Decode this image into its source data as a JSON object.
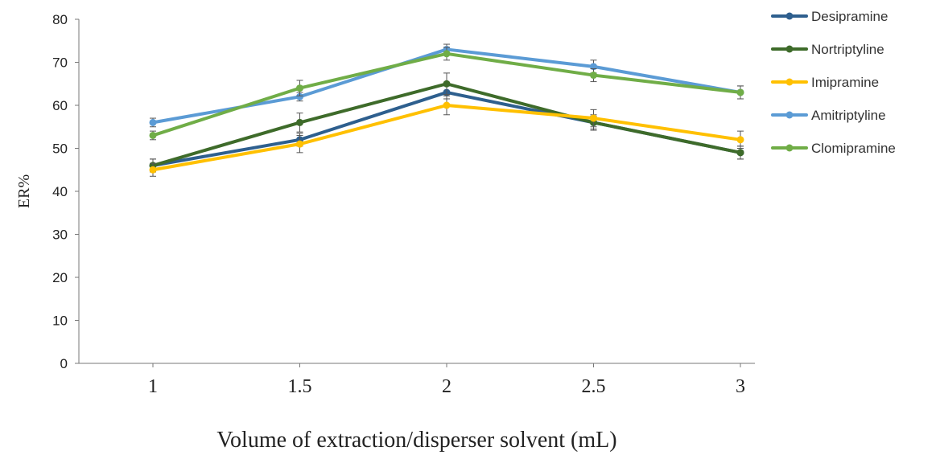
{
  "chart_data": {
    "type": "line",
    "title": "",
    "xlabel": "Volume of extraction/disperser solvent (mL)",
    "ylabel": "ER%",
    "x": [
      1,
      1.5,
      2,
      2.5,
      3
    ],
    "x_tick_labels": [
      "1",
      "1.5",
      "2",
      "2.5",
      "3"
    ],
    "ylim": [
      0,
      80
    ],
    "y_ticks": [
      0,
      10,
      20,
      30,
      40,
      50,
      60,
      70,
      80
    ],
    "grid": false,
    "legend": "right",
    "error_bars": true,
    "series": [
      {
        "name": "Desipramine",
        "color": "#2E5F8E",
        "values": [
          46,
          52,
          63,
          56,
          49
        ],
        "errors": [
          1.5,
          1.5,
          1.5,
          1.5,
          1.5
        ]
      },
      {
        "name": "Nortriptyline",
        "color": "#3E6B2A",
        "values": [
          46,
          56,
          65,
          56,
          49
        ],
        "errors": [
          1.5,
          2.2,
          2.5,
          1.8,
          1.5
        ]
      },
      {
        "name": "Imipramine",
        "color": "#FFC000",
        "values": [
          45,
          51,
          60,
          57,
          52
        ],
        "errors": [
          1.5,
          2.0,
          2.2,
          2.0,
          2.0
        ]
      },
      {
        "name": "Amitriptyline",
        "color": "#5B9BD5",
        "values": [
          56,
          62,
          73,
          69,
          63
        ],
        "errors": [
          1.0,
          1.0,
          1.2,
          1.5,
          1.5
        ]
      },
      {
        "name": "Clomipramine",
        "color": "#70AD47",
        "values": [
          53,
          64,
          72,
          67,
          63
        ],
        "errors": [
          1.0,
          1.8,
          1.5,
          1.5,
          1.5
        ]
      }
    ]
  }
}
